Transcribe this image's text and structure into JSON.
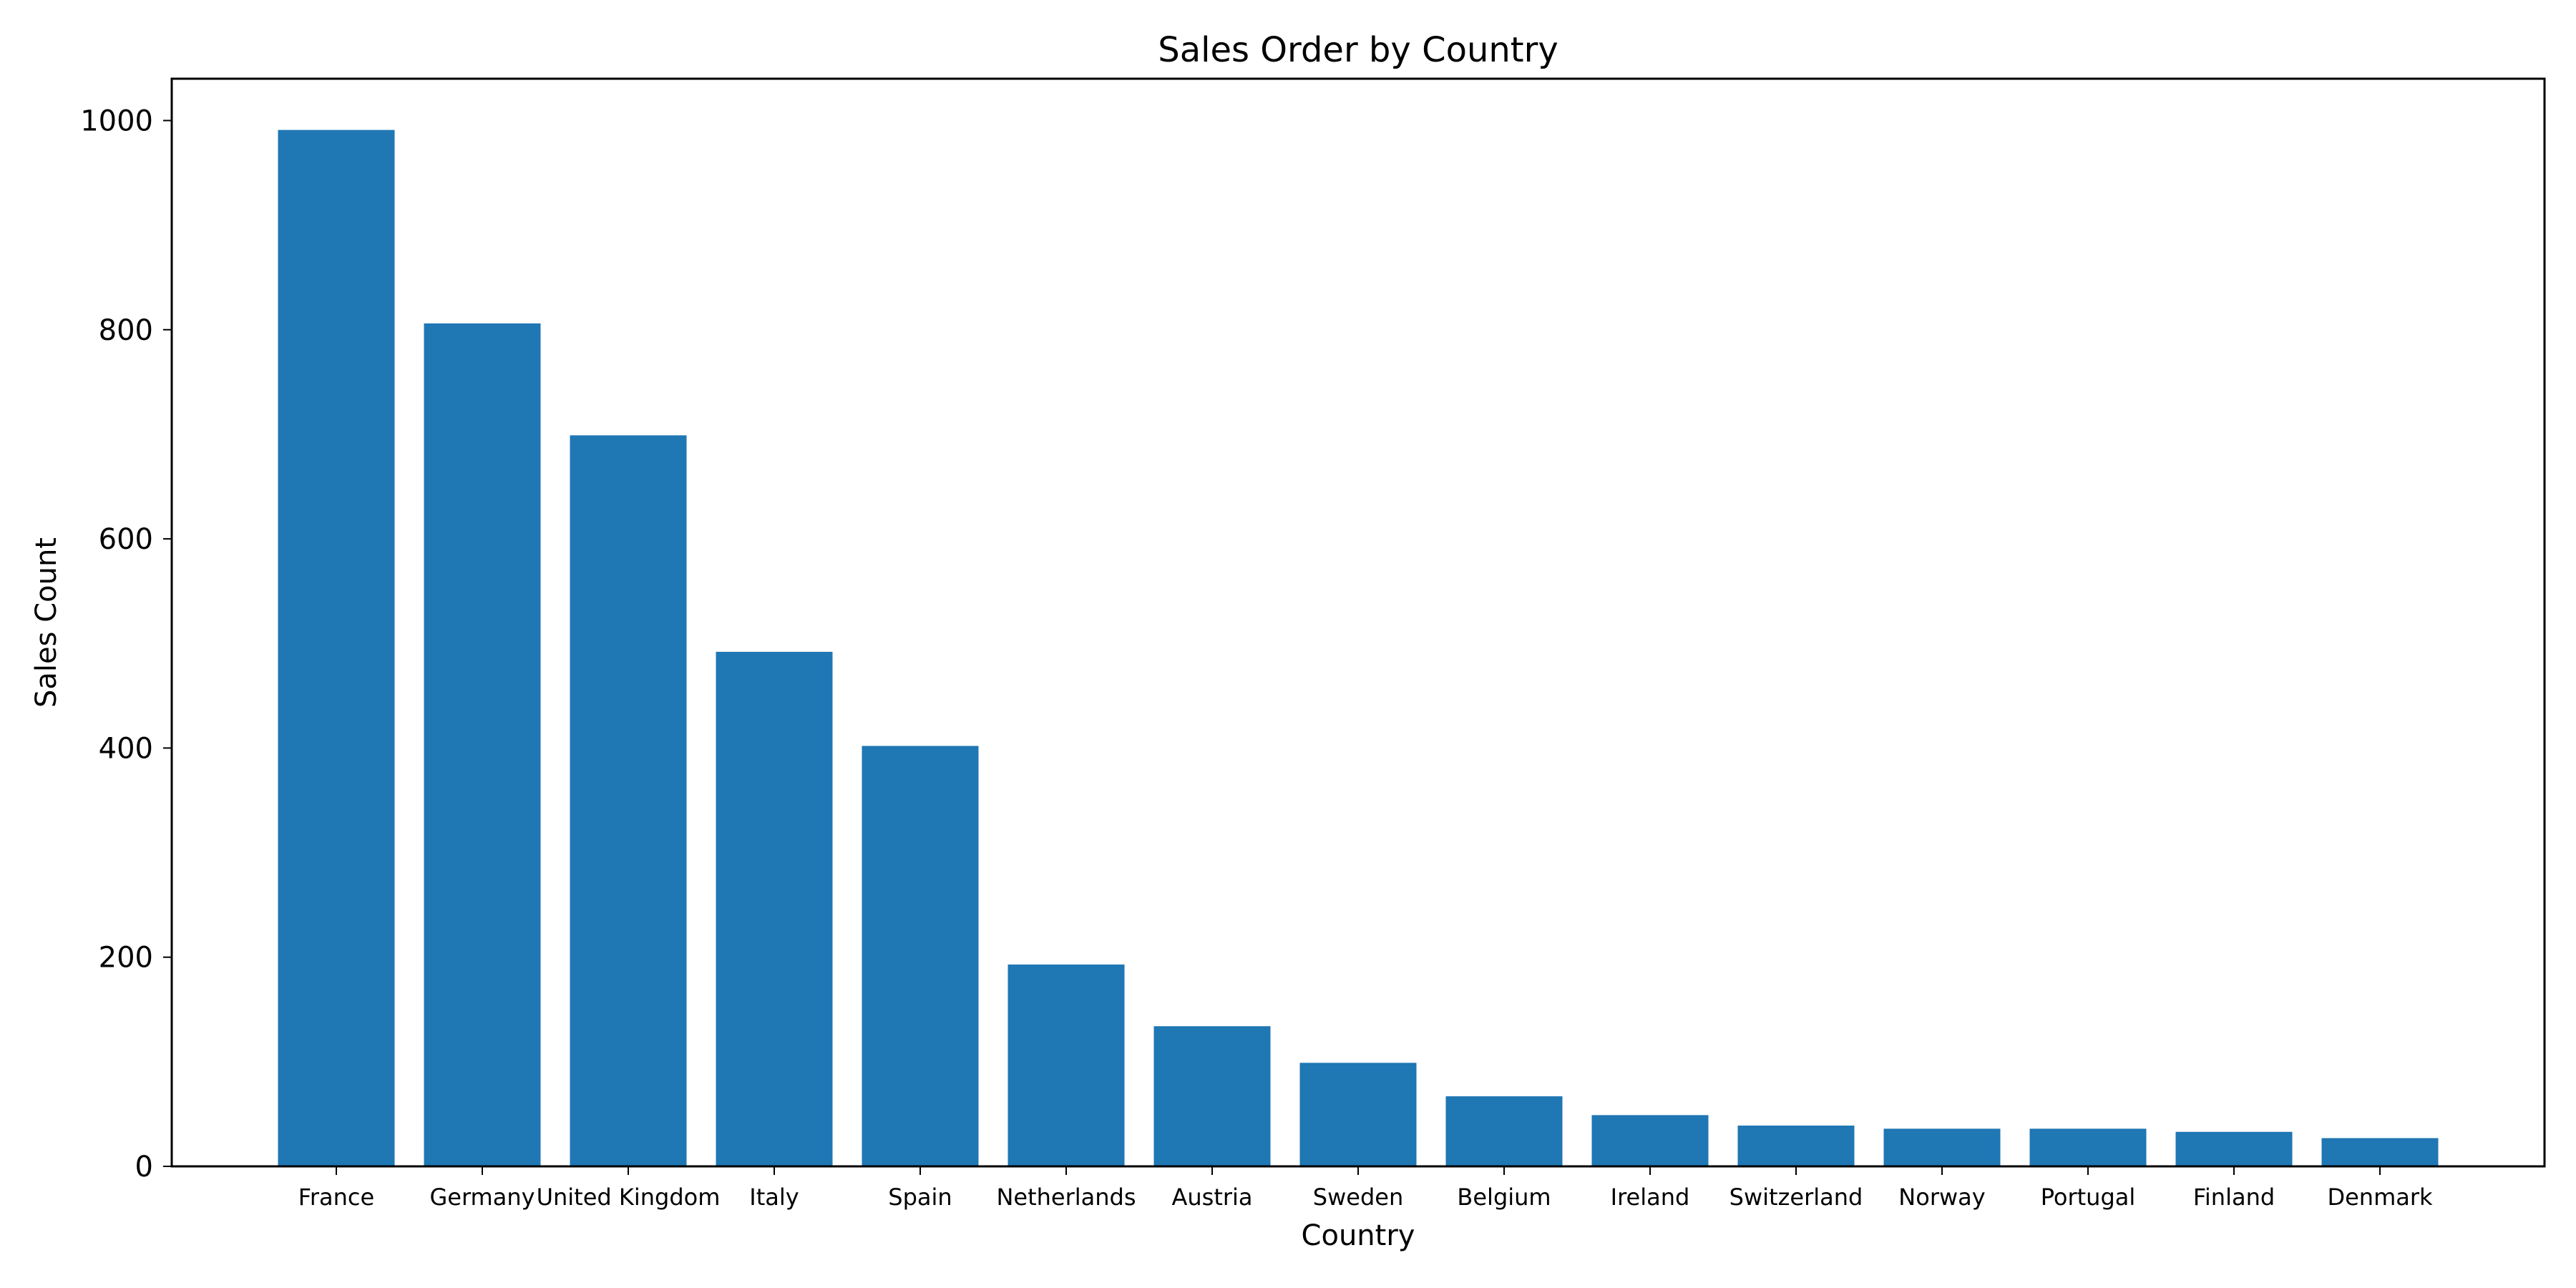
{
  "chart_data": {
    "type": "bar",
    "title": "Sales Order by Country",
    "xlabel": "Country",
    "ylabel": "Sales Count",
    "categories": [
      "France",
      "Germany",
      "United Kingdom",
      "Italy",
      "Spain",
      "Netherlands",
      "Austria",
      "Sweden",
      "Belgium",
      "Ireland",
      "Switzerland",
      "Norway",
      "Portugal",
      "Finland",
      "Denmark"
    ],
    "values": [
      991,
      806,
      699,
      492,
      402,
      193,
      134,
      99,
      67,
      49,
      39,
      36,
      36,
      33,
      27
    ],
    "ylim": [
      0,
      1040
    ],
    "yticks": [
      0,
      200,
      400,
      600,
      800,
      1000
    ],
    "grid": false,
    "legend": "none",
    "bar_color": "#1f77b4"
  }
}
